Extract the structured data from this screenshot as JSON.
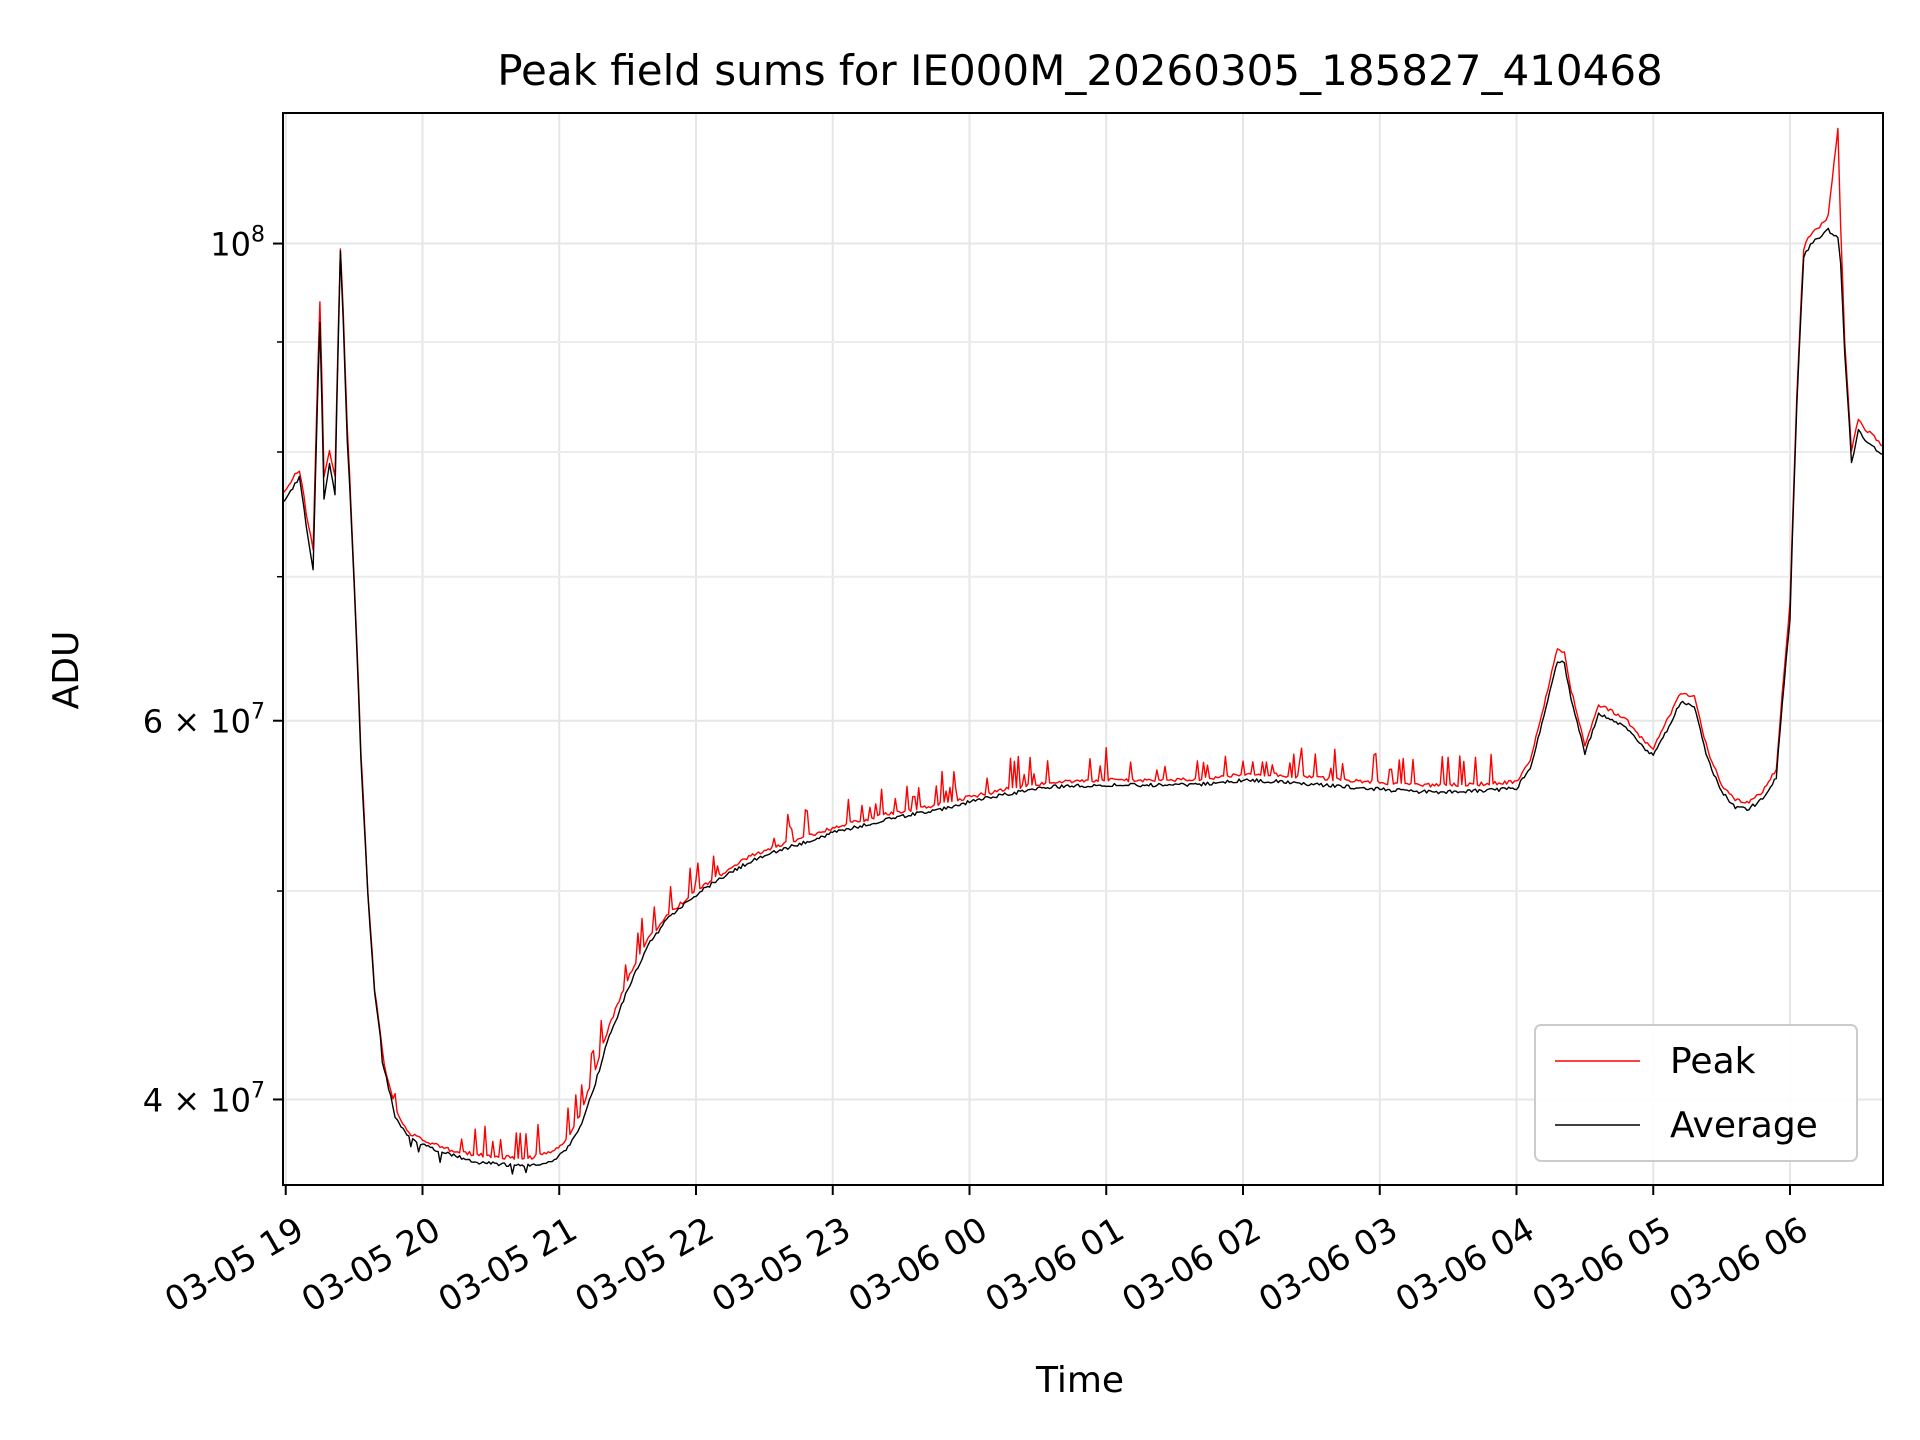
{
  "chart_data": {
    "type": "line",
    "title": "Peak field sums for IE000M_20260305_185827_410468",
    "xlabel": "Time",
    "ylabel": "ADU",
    "y_scale": "log",
    "ylim": [
      36500000,
      115000000
    ],
    "x_unit": "hours since 03-05 00:00",
    "xlim": [
      18.98,
      30.68
    ],
    "grid": true,
    "legend_position": "lower-right",
    "x_ticks": [
      {
        "value": 19,
        "label": "03-05 19"
      },
      {
        "value": 20,
        "label": "03-05 20"
      },
      {
        "value": 21,
        "label": "03-05 21"
      },
      {
        "value": 22,
        "label": "03-05 22"
      },
      {
        "value": 23,
        "label": "03-05 23"
      },
      {
        "value": 24,
        "label": "03-06 00"
      },
      {
        "value": 25,
        "label": "03-06 01"
      },
      {
        "value": 26,
        "label": "03-06 02"
      },
      {
        "value": 27,
        "label": "03-06 03"
      },
      {
        "value": 28,
        "label": "03-06 04"
      },
      {
        "value": 29,
        "label": "03-06 05"
      },
      {
        "value": 30,
        "label": "03-06 06"
      }
    ],
    "y_major_ticks": [
      {
        "value": 40000000,
        "mantissa": "4",
        "exponent": "7"
      },
      {
        "value": 60000000,
        "mantissa": "6",
        "exponent": "7"
      },
      {
        "value": 100000000,
        "mantissa": "",
        "exponent": "8"
      }
    ],
    "y_minor_gridlines": [
      50000000,
      70000000,
      80000000,
      90000000
    ],
    "series": [
      {
        "name": "Peak",
        "color": "#ff0000",
        "x": [
          18.98,
          19.05,
          19.1,
          19.15,
          19.2,
          19.25,
          19.28,
          19.32,
          19.36,
          19.4,
          19.42,
          19.45,
          19.5,
          19.55,
          19.6,
          19.65,
          19.72,
          19.8,
          19.9,
          20.0,
          20.2,
          20.4,
          20.6,
          20.8,
          20.95,
          21.05,
          21.15,
          21.25,
          21.35,
          21.5,
          21.65,
          21.8,
          22.0,
          22.2,
          22.4,
          22.6,
          22.8,
          23.0,
          23.2,
          23.4,
          23.6,
          23.8,
          24.0,
          24.3,
          24.6,
          25.0,
          25.4,
          25.8,
          26.0,
          26.3,
          26.6,
          26.9,
          27.1,
          27.3,
          27.5,
          27.8,
          28.0,
          28.1,
          28.2,
          28.3,
          28.35,
          28.4,
          28.5,
          28.6,
          28.7,
          28.8,
          28.9,
          29.0,
          29.1,
          29.2,
          29.3,
          29.4,
          29.5,
          29.6,
          29.7,
          29.8,
          29.9,
          30.0,
          30.05,
          30.1,
          30.15,
          30.2,
          30.28,
          30.35,
          30.37,
          30.4,
          30.45,
          30.5,
          30.55,
          30.6,
          30.68
        ],
        "y": [
          76500000,
          77800000,
          78500000,
          75000000,
          72000000,
          94000000,
          78000000,
          80000000,
          78000000,
          99500000,
          93000000,
          82000000,
          70000000,
          58000000,
          50000000,
          45000000,
          41500000,
          39600000,
          38600000,
          38300000,
          37900000,
          37700000,
          37600000,
          37600000,
          37800000,
          38300000,
          39300000,
          41000000,
          43000000,
          45500000,
          47500000,
          48800000,
          50000000,
          51000000,
          51900000,
          52500000,
          53000000,
          53500000,
          53900000,
          54300000,
          54600000,
          54900000,
          55300000,
          55800000,
          56200000,
          56300000,
          56300000,
          56400000,
          56700000,
          56600000,
          56400000,
          56200000,
          56100000,
          56000000,
          56000000,
          56100000,
          56200000,
          57500000,
          61000000,
          64800000,
          64500000,
          62000000,
          58400000,
          61000000,
          60600000,
          60100000,
          59000000,
          58300000,
          60000000,
          61800000,
          61600000,
          58000000,
          56000000,
          55100000,
          55000000,
          55600000,
          57000000,
          68000000,
          85000000,
          99500000,
          101000000,
          101500000,
          103000000,
          113000000,
          102000000,
          90000000,
          80000000,
          83000000,
          82000000,
          81500000,
          80500000
        ]
      },
      {
        "name": "Average",
        "color": "#000000",
        "x": [
          18.98,
          19.05,
          19.1,
          19.15,
          19.2,
          19.25,
          19.28,
          19.32,
          19.36,
          19.4,
          19.42,
          19.45,
          19.5,
          19.55,
          19.6,
          19.65,
          19.72,
          19.8,
          19.9,
          20.0,
          20.2,
          20.4,
          20.6,
          20.8,
          20.95,
          21.05,
          21.15,
          21.25,
          21.35,
          21.5,
          21.65,
          21.8,
          22.0,
          22.2,
          22.4,
          22.6,
          22.8,
          23.0,
          23.2,
          23.4,
          23.6,
          23.8,
          24.0,
          24.3,
          24.6,
          25.0,
          25.4,
          25.8,
          26.0,
          26.3,
          26.6,
          26.9,
          27.1,
          27.3,
          27.5,
          27.8,
          28.0,
          28.1,
          28.2,
          28.3,
          28.35,
          28.4,
          28.5,
          28.6,
          28.7,
          28.8,
          28.9,
          29.0,
          29.1,
          29.2,
          29.3,
          29.4,
          29.5,
          29.6,
          29.7,
          29.8,
          29.9,
          30.0,
          30.05,
          30.1,
          30.15,
          30.2,
          30.28,
          30.35,
          30.37,
          30.4,
          30.45,
          30.5,
          30.55,
          30.6,
          30.68
        ],
        "y": [
          75800000,
          77000000,
          77800000,
          74000000,
          70500000,
          92000000,
          76000000,
          79000000,
          76500000,
          99000000,
          92000000,
          81000000,
          69500000,
          57500000,
          49800000,
          44800000,
          41300000,
          39300000,
          38400000,
          38100000,
          37700000,
          37400000,
          37300000,
          37300000,
          37400000,
          37900000,
          38800000,
          40400000,
          42500000,
          45000000,
          47200000,
          48600000,
          49800000,
          50800000,
          51600000,
          52200000,
          52700000,
          53200000,
          53600000,
          54000000,
          54300000,
          54600000,
          55000000,
          55500000,
          55900000,
          56000000,
          56000000,
          56100000,
          56300000,
          56200000,
          56000000,
          55800000,
          55700000,
          55600000,
          55600000,
          55700000,
          55800000,
          57000000,
          60300000,
          64000000,
          63800000,
          61400000,
          57900000,
          60400000,
          60100000,
          59600000,
          58500000,
          57800000,
          59400000,
          61200000,
          61000000,
          57500000,
          55600000,
          54700000,
          54600000,
          55200000,
          56500000,
          67000000,
          84000000,
          98500000,
          100000000,
          100500000,
          101500000,
          100500000,
          98000000,
          89000000,
          79000000,
          82000000,
          81000000,
          80500000,
          79800000
        ]
      }
    ]
  }
}
